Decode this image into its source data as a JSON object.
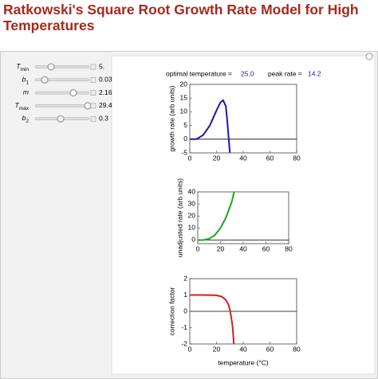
{
  "title": "Ratkowski's Square Root Growth Rate Model for High Temperatures",
  "controls": [
    {
      "symbol": "T",
      "sub": "min",
      "value": "5."
    },
    {
      "symbol": "b",
      "sub": "1",
      "value": "0.03"
    },
    {
      "symbol": "m",
      "value": "2.16"
    },
    {
      "symbol": "T",
      "sub": "max",
      "value": "29.4"
    },
    {
      "symbol": "b",
      "sub": "2",
      "value": "0.3"
    }
  ],
  "readout": {
    "optimal_label": "optimal temperature =",
    "optimal_value": "25.0",
    "peak_label": "peak rate =",
    "peak_value": "14.2"
  },
  "chart_data": [
    {
      "type": "line",
      "ylabel": "growth rate (arb units)",
      "color": "#1a1aa6",
      "x": [
        0,
        5,
        10,
        15,
        20,
        23,
        25,
        27,
        28,
        29,
        30
      ],
      "values": [
        0,
        0,
        1.5,
        5,
        10.5,
        13.5,
        14.2,
        12,
        7,
        1,
        -5
      ],
      "xlim": [
        0,
        80
      ],
      "ylim": [
        -5,
        20
      ],
      "xticks": [
        0,
        20,
        40,
        60,
        80
      ],
      "yticks": [
        -5,
        0,
        5,
        10,
        15,
        20
      ]
    },
    {
      "type": "line",
      "ylabel": "unadjusted rate (arb units)",
      "color": "#1aa61a",
      "x": [
        0,
        5,
        10,
        15,
        20,
        25,
        30,
        32
      ],
      "values": [
        0,
        0,
        1,
        4,
        10,
        19,
        32,
        40
      ],
      "xlim": [
        0,
        80
      ],
      "ylim": [
        -3,
        40
      ],
      "xticks": [
        0,
        20,
        40,
        60,
        80
      ],
      "yticks": [
        0,
        10,
        20,
        30,
        40
      ]
    },
    {
      "type": "line",
      "ylabel": "correction factor",
      "xlabel": "temperature (°C)",
      "color": "#d42020",
      "x": [
        0,
        10,
        20,
        24,
        27,
        29,
        30,
        31,
        32,
        33
      ],
      "values": [
        1,
        1,
        0.98,
        0.9,
        0.7,
        0.4,
        0.1,
        -0.35,
        -0.9,
        -2
      ],
      "xlim": [
        0,
        80
      ],
      "ylim": [
        -2,
        2
      ],
      "xticks": [
        0,
        20,
        40,
        60,
        80
      ],
      "yticks": [
        -2,
        -1,
        0,
        1,
        2
      ]
    }
  ]
}
